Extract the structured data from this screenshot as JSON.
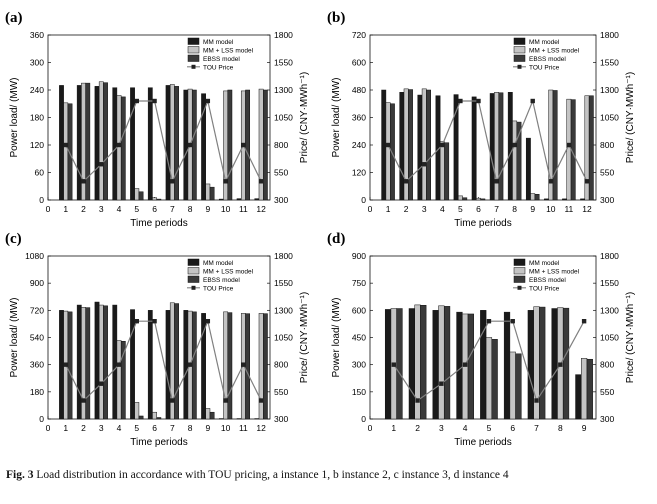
{
  "figure": {
    "caption_label": "Fig. 3",
    "caption_text": "Load distribution in accordance with TOU pricing, a instance 1, b instance 2, c instance 3, d instance 4"
  },
  "colors": {
    "mm": "#1a1a1a",
    "lss": "#c4c4c4",
    "ebss": "#3a3a3a",
    "tou": "#808080"
  },
  "chart_data": [
    {
      "type": "bar",
      "panel_label": "(a)",
      "xlabel": "Time periods",
      "ylabel": "Power load/ (MW)",
      "y2label": "Price/ (CNY·MWh⁻¹)",
      "x_ticks": [
        0,
        1,
        2,
        3,
        4,
        5,
        6,
        7,
        8,
        9,
        10,
        11,
        12
      ],
      "ylim": [
        0,
        360
      ],
      "y_ticks": [
        0,
        60,
        120,
        180,
        240,
        300,
        360
      ],
      "y2lim": [
        300,
        1800
      ],
      "y2_ticks": [
        300,
        550,
        800,
        1050,
        1300,
        1550,
        1800
      ],
      "legend": [
        "MM model",
        "MM + LSS model",
        "EBSS model",
        "TOU Price"
      ],
      "categories": [
        1,
        2,
        3,
        4,
        5,
        6,
        7,
        8,
        9,
        10,
        11,
        12
      ],
      "series": [
        {
          "name": "MM model",
          "values": [
            250,
            250,
            248,
            245,
            245,
            245,
            250,
            240,
            232,
            2,
            3,
            3
          ]
        },
        {
          "name": "MM + LSS model",
          "values": [
            212,
            255,
            258,
            228,
            25,
            5,
            252,
            242,
            35,
            238,
            238,
            242
          ]
        },
        {
          "name": "EBSS model",
          "values": [
            210,
            255,
            256,
            225,
            18,
            2,
            248,
            240,
            28,
            240,
            240,
            240
          ]
        }
      ],
      "tou_price": [
        800,
        470,
        625,
        800,
        1200,
        1200,
        470,
        800,
        1200,
        470,
        800,
        470
      ]
    },
    {
      "type": "bar",
      "panel_label": "(b)",
      "xlabel": "Time periods",
      "ylabel": "Power load/ (MW)",
      "y2label": "Price/ (CNY·MWh⁻¹)",
      "x_ticks": [
        0,
        1,
        2,
        3,
        4,
        5,
        6,
        7,
        8,
        9,
        10,
        11,
        12
      ],
      "ylim": [
        0,
        720
      ],
      "y_ticks": [
        0,
        120,
        240,
        360,
        480,
        600,
        720
      ],
      "y2lim": [
        300,
        1800
      ],
      "y2_ticks": [
        300,
        550,
        800,
        1050,
        1300,
        1550,
        1800
      ],
      "legend": [
        "MM model",
        "MM + LSS model",
        "EBSS model",
        "TOU Price"
      ],
      "categories": [
        1,
        2,
        3,
        4,
        5,
        6,
        7,
        8,
        9,
        10,
        11,
        12
      ],
      "series": [
        {
          "name": "MM model",
          "values": [
            480,
            470,
            458,
            455,
            460,
            450,
            465,
            470,
            270,
            5,
            5,
            5
          ]
        },
        {
          "name": "MM + LSS model",
          "values": [
            425,
            485,
            485,
            255,
            18,
            8,
            470,
            345,
            28,
            480,
            440,
            455
          ]
        },
        {
          "name": "EBSS model",
          "values": [
            420,
            482,
            480,
            250,
            10,
            5,
            468,
            340,
            25,
            478,
            438,
            455
          ]
        }
      ],
      "tou_price": [
        800,
        470,
        625,
        800,
        1200,
        1200,
        470,
        800,
        1200,
        470,
        800,
        470
      ]
    },
    {
      "type": "bar",
      "panel_label": "(c)",
      "xlabel": "Time periods",
      "ylabel": "Power load/ (MW)",
      "y2label": "Price/ (CNY·MWh⁻¹)",
      "x_ticks": [
        0,
        1,
        2,
        3,
        4,
        5,
        6,
        7,
        8,
        9,
        10,
        11,
        12
      ],
      "ylim": [
        0,
        1080
      ],
      "y_ticks": [
        0,
        180,
        360,
        540,
        720,
        900,
        1080
      ],
      "y2lim": [
        300,
        1800
      ],
      "y2_ticks": [
        300,
        550,
        800,
        1050,
        1300,
        1550,
        1800
      ],
      "legend": [
        "MM model",
        "MM + LSS model",
        "EBSS model",
        "TOU Price"
      ],
      "categories": [
        1,
        2,
        3,
        4,
        5,
        6,
        7,
        8,
        9,
        10,
        11,
        12
      ],
      "series": [
        {
          "name": "MM model",
          "values": [
            720,
            755,
            775,
            755,
            725,
            720,
            720,
            720,
            700,
            3,
            3,
            3
          ]
        },
        {
          "name": "MM + LSS model",
          "values": [
            715,
            740,
            755,
            520,
            110,
            45,
            770,
            715,
            70,
            710,
            700,
            700
          ]
        },
        {
          "name": "EBSS model",
          "values": [
            710,
            738,
            750,
            515,
            20,
            10,
            765,
            710,
            45,
            705,
            698,
            698
          ]
        }
      ],
      "tou_price": [
        800,
        470,
        625,
        800,
        1200,
        1200,
        470,
        800,
        1200,
        470,
        800,
        470
      ]
    },
    {
      "type": "bar",
      "panel_label": "(d)",
      "xlabel": "Time periods",
      "ylabel": "Power load/ (MW)",
      "y2label": "Price/ (CNY·MWh⁻¹)",
      "x_ticks": [
        0,
        1,
        2,
        3,
        4,
        5,
        6,
        7,
        8,
        9
      ],
      "ylim": [
        0,
        900
      ],
      "y_ticks": [
        0,
        150,
        300,
        450,
        600,
        750,
        900
      ],
      "y2lim": [
        300,
        1800
      ],
      "y2_ticks": [
        300,
        550,
        800,
        1050,
        1300,
        1550,
        1800
      ],
      "legend": [
        "MM model",
        "MM + LSS model",
        "EBSS model",
        "TOU Price"
      ],
      "categories": [
        1,
        2,
        3,
        4,
        5,
        6,
        7,
        8,
        9
      ],
      "series": [
        {
          "name": "MM model",
          "values": [
            605,
            610,
            600,
            590,
            600,
            590,
            600,
            610,
            245
          ]
        },
        {
          "name": "MM + LSS model",
          "values": [
            610,
            630,
            625,
            580,
            450,
            370,
            620,
            615,
            335
          ]
        },
        {
          "name": "EBSS model",
          "values": [
            610,
            628,
            622,
            580,
            440,
            360,
            618,
            612,
            330
          ]
        }
      ],
      "tou_price": [
        800,
        470,
        625,
        800,
        1200,
        1200,
        470,
        800,
        1200
      ]
    }
  ]
}
